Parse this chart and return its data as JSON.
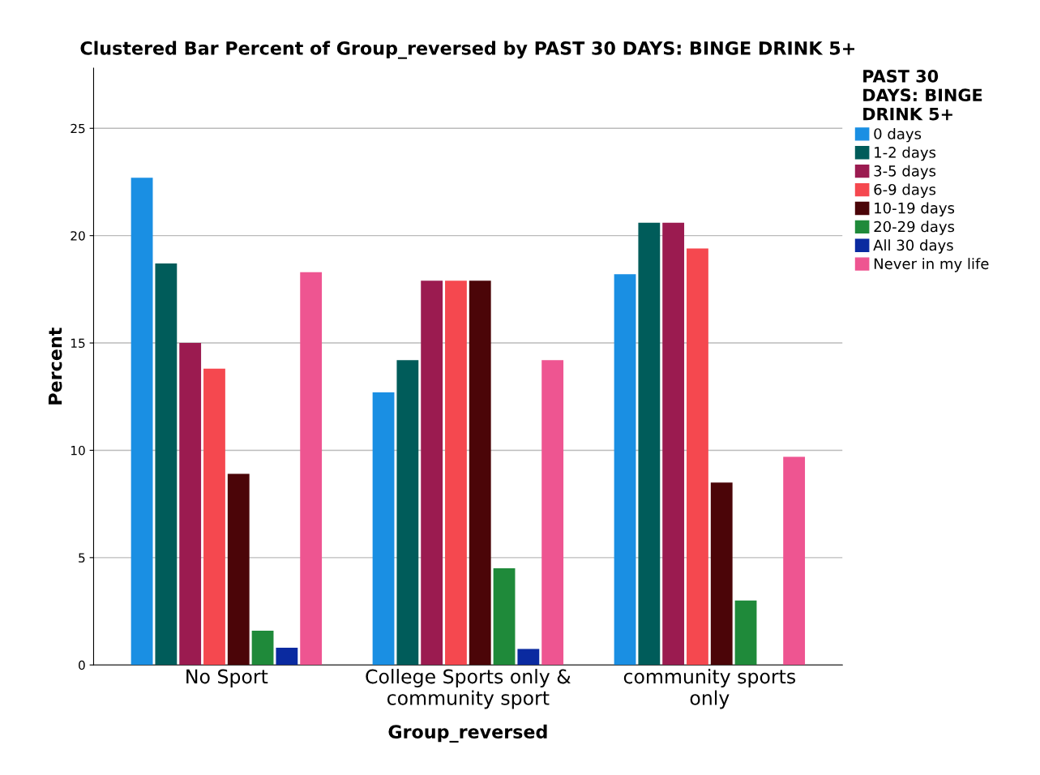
{
  "chart_data": {
    "type": "bar",
    "title": "Clustered Bar Percent of Group_reversed by PAST 30 DAYS: BINGE DRINK 5+",
    "xlabel": "Group_reversed",
    "ylabel": "Percent",
    "legend_title": "PAST 30\nDAYS: BINGE\nDRINK 5+",
    "categories": [
      "No Sport",
      "College Sports only &\ncommunity sport",
      "community sports\nonly"
    ],
    "series": [
      {
        "name": "0 days",
        "color": "#1a8fe3",
        "values": [
          22.7,
          12.7,
          18.2
        ]
      },
      {
        "name": "1-2 days",
        "color": "#005c5a",
        "values": [
          18.7,
          14.2,
          20.6
        ]
      },
      {
        "name": "3-5 days",
        "color": "#9b1b50",
        "values": [
          15.0,
          17.9,
          20.6
        ]
      },
      {
        "name": "6-9 days",
        "color": "#f5484f",
        "values": [
          13.8,
          17.9,
          19.4
        ]
      },
      {
        "name": "10-19 days",
        "color": "#4b0508",
        "values": [
          8.9,
          17.9,
          8.5
        ]
      },
      {
        "name": "20-29 days",
        "color": "#1f8a3a",
        "values": [
          1.6,
          4.5,
          3.0
        ]
      },
      {
        "name": "All 30 days",
        "color": "#0a2aa0",
        "values": [
          0.8,
          0.75,
          null
        ]
      },
      {
        "name": "Never in my life",
        "color": "#ee5591",
        "values": [
          18.3,
          14.2,
          9.7
        ]
      }
    ],
    "ylim": [
      0,
      27.8
    ],
    "yticks": [
      0,
      5,
      10,
      15,
      20,
      25
    ],
    "grid": "y",
    "legend": "right"
  }
}
